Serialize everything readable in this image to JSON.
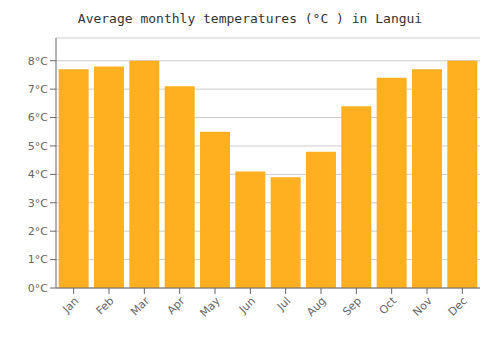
{
  "chart_data": {
    "type": "bar",
    "title": "Average monthly temperatures (°C ) in Langui",
    "categories": [
      "Jan",
      "Feb",
      "Mar",
      "Apr",
      "May",
      "Jun",
      "Jul",
      "Aug",
      "Sep",
      "Oct",
      "Nov",
      "Dec"
    ],
    "values": [
      7.7,
      7.8,
      8.0,
      7.1,
      5.5,
      4.1,
      3.9,
      4.8,
      6.4,
      7.4,
      7.7,
      8.0
    ],
    "color": "#FFB020",
    "ylim": [
      0,
      8.8
    ],
    "yticks": [
      {
        "value": 0,
        "label": "0°C"
      },
      {
        "value": 1,
        "label": "1°C"
      },
      {
        "value": 2,
        "label": "2°C"
      },
      {
        "value": 3,
        "label": "3°C"
      },
      {
        "value": 4,
        "label": "4°C"
      },
      {
        "value": 5,
        "label": "5°C"
      },
      {
        "value": 6,
        "label": "6°C"
      },
      {
        "value": 7,
        "label": "7°C"
      },
      {
        "value": 8,
        "label": "8°C"
      }
    ],
    "grid": true
  }
}
